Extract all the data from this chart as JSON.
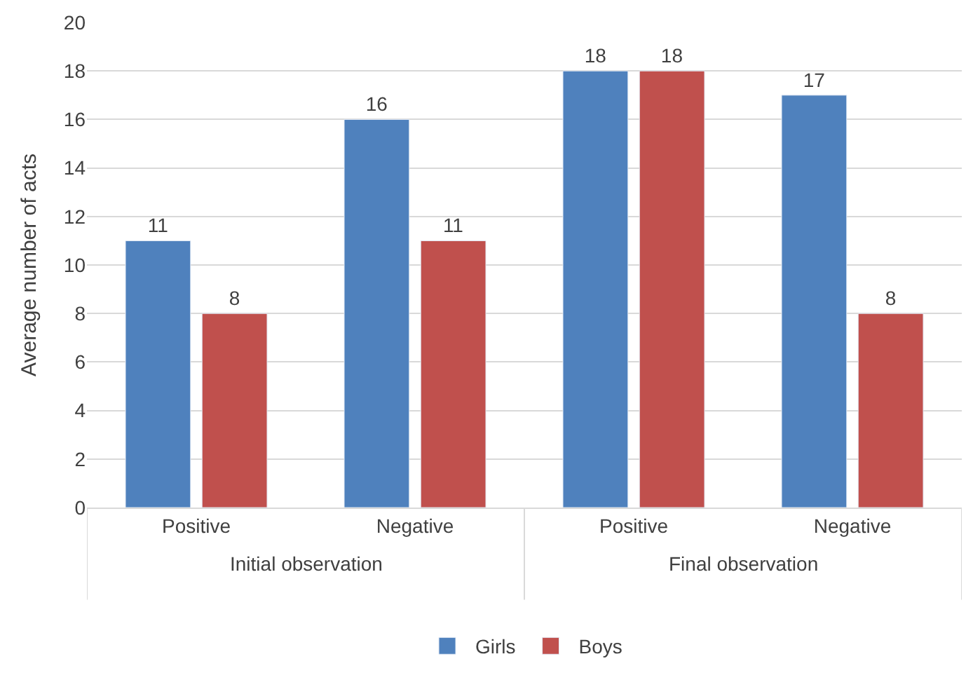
{
  "chart_data": {
    "type": "bar",
    "ylabel": "Average number of acts",
    "categories": [
      "Positive",
      "Negative",
      "Positive",
      "Negative"
    ],
    "series": [
      {
        "name": "Girls",
        "color": "#4f81bd",
        "values": [
          11,
          16,
          18,
          17
        ]
      },
      {
        "name": "Boys",
        "color": "#c0504d",
        "values": [
          8,
          11,
          18,
          8
        ]
      }
    ],
    "annotations": [
      "Initial observation",
      "Final observation"
    ],
    "ylim": [
      0,
      20
    ],
    "yticks": [
      0,
      2,
      4,
      6,
      8,
      10,
      12,
      14,
      16,
      18,
      20
    ],
    "grid": "y",
    "legend": "bottom",
    "data_labels": true
  }
}
